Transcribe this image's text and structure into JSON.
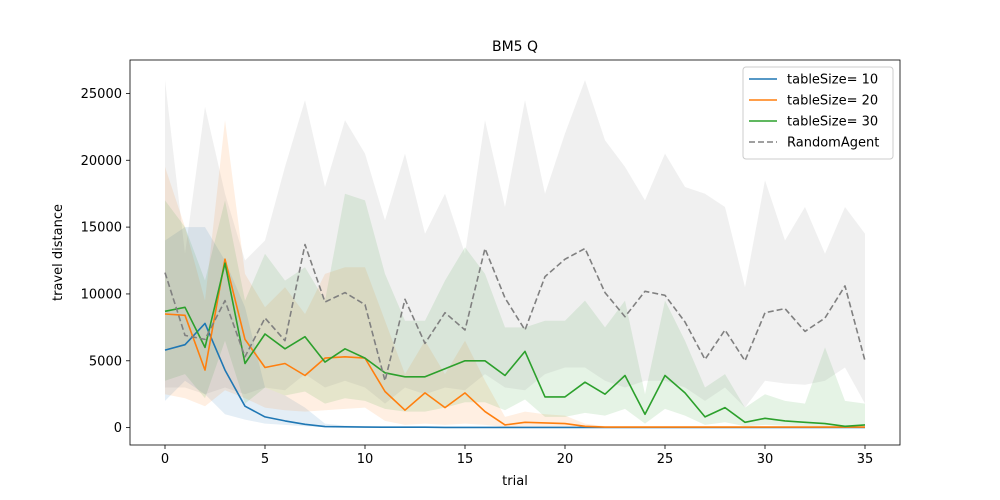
{
  "chart_data": {
    "type": "line",
    "title": "BM5  Q",
    "xlabel": "trial",
    "ylabel": "travel distance",
    "xlim": [
      -1.75,
      36.75
    ],
    "ylim": [
      -1300,
      27500
    ],
    "xticks": [
      0,
      5,
      10,
      15,
      20,
      25,
      30,
      35
    ],
    "yticks": [
      0,
      5000,
      10000,
      15000,
      20000,
      25000
    ],
    "grid": false,
    "legend_position": "top-right",
    "x": [
      0,
      1,
      2,
      3,
      4,
      5,
      6,
      7,
      8,
      9,
      10,
      11,
      12,
      13,
      14,
      15,
      16,
      17,
      18,
      19,
      20,
      21,
      22,
      23,
      24,
      25,
      26,
      27,
      28,
      29,
      30,
      31,
      32,
      33,
      34,
      35
    ],
    "series": [
      {
        "name": "tableSize= 10",
        "color": "#1f77b4",
        "style": "solid",
        "values": [
          5800,
          6200,
          7800,
          4300,
          1600,
          800,
          500,
          250,
          80,
          60,
          40,
          30,
          30,
          30,
          20,
          20,
          20,
          20,
          20,
          20,
          20,
          20,
          20,
          20,
          20,
          20,
          20,
          20,
          20,
          20,
          20,
          20,
          20,
          20,
          20,
          20
        ],
        "lower": [
          2000,
          3500,
          2500,
          1000,
          600,
          300,
          200,
          100,
          40,
          30,
          20,
          20,
          20,
          20,
          10,
          10,
          10,
          10,
          10,
          10,
          10,
          10,
          10,
          10,
          10,
          10,
          10,
          10,
          10,
          10,
          10,
          10,
          10,
          10,
          10,
          10
        ],
        "upper": [
          14000,
          15000,
          15000,
          12500,
          9000,
          3000,
          2400,
          1500,
          300,
          150,
          100,
          80,
          70,
          60,
          50,
          50,
          50,
          50,
          50,
          50,
          50,
          50,
          50,
          50,
          50,
          50,
          50,
          50,
          50,
          50,
          50,
          50,
          50,
          50,
          50,
          50
        ]
      },
      {
        "name": "tableSize= 20",
        "color": "#ff7f0e",
        "style": "solid",
        "values": [
          8500,
          8400,
          4300,
          12600,
          6600,
          4500,
          4800,
          3900,
          5200,
          5300,
          5200,
          2700,
          1300,
          2600,
          1500,
          2600,
          1200,
          200,
          400,
          350,
          300,
          100,
          40,
          40,
          40,
          40,
          40,
          40,
          40,
          40,
          40,
          40,
          40,
          40,
          40,
          40
        ],
        "lower": [
          2500,
          2200,
          1600,
          2800,
          2200,
          1500,
          1300,
          1200,
          1300,
          1400,
          1500,
          500,
          200,
          300,
          200,
          300,
          200,
          40,
          80,
          70,
          60,
          20,
          10,
          10,
          10,
          10,
          10,
          10,
          10,
          10,
          10,
          10,
          10,
          10,
          10,
          10
        ],
        "upper": [
          19500,
          15000,
          9500,
          23000,
          11500,
          9000,
          10500,
          8500,
          11500,
          12000,
          12000,
          8000,
          4000,
          6500,
          4000,
          6500,
          3500,
          800,
          1200,
          1000,
          900,
          300,
          100,
          100,
          100,
          100,
          100,
          100,
          100,
          100,
          100,
          100,
          100,
          100,
          100,
          100
        ]
      },
      {
        "name": "tableSize= 30",
        "color": "#2ca02c",
        "style": "solid",
        "values": [
          8700,
          9000,
          6000,
          12300,
          4800,
          7000,
          5900,
          6800,
          4900,
          5900,
          5200,
          4100,
          3800,
          3800,
          4400,
          5000,
          5000,
          3900,
          5700,
          2300,
          2300,
          3400,
          2500,
          3900,
          1000,
          3900,
          2600,
          800,
          1500,
          400,
          700,
          500,
          400,
          300,
          100,
          200
        ],
        "lower": [
          3500,
          4000,
          2200,
          6500,
          1800,
          3000,
          2400,
          2700,
          1800,
          2200,
          2000,
          1400,
          1200,
          1200,
          1500,
          1900,
          1900,
          1300,
          2100,
          800,
          800,
          1100,
          900,
          1400,
          300,
          1400,
          900,
          200,
          400,
          100,
          200,
          150,
          120,
          80,
          30,
          50
        ],
        "upper": [
          17000,
          15000,
          11000,
          17000,
          9500,
          13000,
          11000,
          12000,
          9500,
          17500,
          17000,
          11500,
          8000,
          8000,
          11000,
          13500,
          11500,
          7500,
          7500,
          8000,
          8000,
          9500,
          7500,
          9500,
          2500,
          9500,
          6500,
          3000,
          4000,
          1500,
          2500,
          2000,
          1800,
          6000,
          2000,
          1800
        ]
      },
      {
        "name": "RandomAgent",
        "color": "#808080",
        "style": "dashed",
        "values": [
          11600,
          6900,
          6600,
          9500,
          5300,
          8200,
          6500,
          13700,
          9400,
          10100,
          9200,
          3500,
          9600,
          6300,
          8600,
          7300,
          13400,
          9700,
          7300,
          11300,
          12600,
          13400,
          10100,
          8300,
          10200,
          9900,
          7900,
          5100,
          7300,
          5000,
          8600,
          8900,
          7200,
          8200,
          10600,
          5000
        ],
        "lower": [
          3000,
          3000,
          2500,
          3000,
          2500,
          3000,
          2800,
          4000,
          3000,
          3500,
          3000,
          1800,
          3000,
          2500,
          3000,
          2800,
          4000,
          3000,
          2800,
          4000,
          4500,
          4500,
          3500,
          3000,
          3500,
          3500,
          3000,
          2000,
          3000,
          1500,
          3500,
          3300,
          3200,
          3500,
          4500,
          1800
        ],
        "upper": [
          26000,
          13000,
          24000,
          17500,
          12500,
          14000,
          19500,
          24500,
          18000,
          23000,
          20500,
          15500,
          20500,
          14500,
          17500,
          13000,
          23000,
          16500,
          24500,
          17500,
          22000,
          26000,
          21500,
          19500,
          17000,
          20500,
          18000,
          17500,
          16500,
          10500,
          18500,
          14000,
          16500,
          13000,
          16500,
          14500
        ]
      }
    ]
  }
}
